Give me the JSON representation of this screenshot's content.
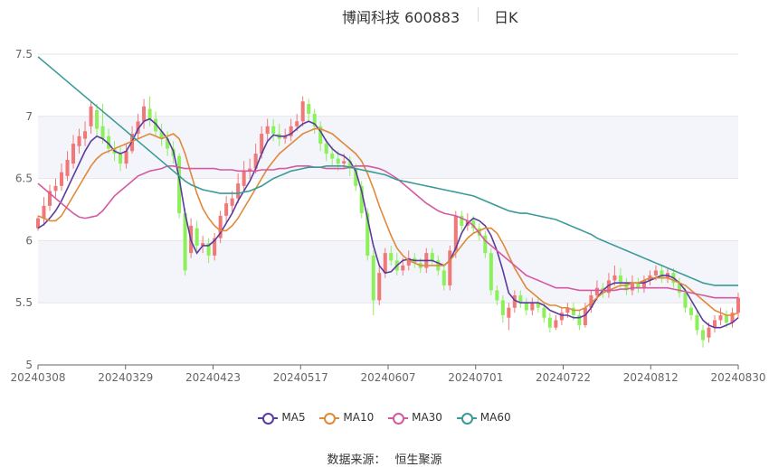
{
  "header": {
    "title": "博闻科技 600883",
    "period": "日K"
  },
  "source": {
    "label": "数据来源：",
    "name": "恒生聚源"
  },
  "colors": {
    "up": "#f07878",
    "down": "#8cf05a",
    "MA5": "#5b3b9e",
    "MA10": "#e0893a",
    "MA30": "#d45aa0",
    "MA60": "#3a9a98"
  },
  "chart_data": {
    "type": "candlestick",
    "title": "博闻科技 600883 日K",
    "ylim": [
      5,
      7.5
    ],
    "y_ticks": [
      "5",
      "5.5",
      "6",
      "6.5",
      "7",
      "7.5"
    ],
    "x_ticks": [
      "20240308",
      "20240329",
      "20240423",
      "20240517",
      "20240607",
      "20240701",
      "20240722",
      "20240812",
      "20240830"
    ],
    "legend": [
      "MA5",
      "MA10",
      "MA30",
      "MA60"
    ],
    "legend_position": "bottom",
    "candles": [
      {
        "o": 6.1,
        "c": 6.18,
        "h": 6.2,
        "l": 6.08
      },
      {
        "o": 6.18,
        "c": 6.28,
        "h": 6.35,
        "l": 6.12
      },
      {
        "o": 6.28,
        "c": 6.4,
        "h": 6.45,
        "l": 6.24
      },
      {
        "o": 6.4,
        "c": 6.44,
        "h": 6.5,
        "l": 6.35
      },
      {
        "o": 6.44,
        "c": 6.55,
        "h": 6.62,
        "l": 6.4
      },
      {
        "o": 6.52,
        "c": 6.65,
        "h": 6.72,
        "l": 6.48
      },
      {
        "o": 6.62,
        "c": 6.78,
        "h": 6.85,
        "l": 6.58
      },
      {
        "o": 6.76,
        "c": 6.84,
        "h": 6.9,
        "l": 6.7
      },
      {
        "o": 6.82,
        "c": 6.88,
        "h": 6.96,
        "l": 6.76
      },
      {
        "o": 6.92,
        "c": 7.08,
        "h": 7.12,
        "l": 6.86
      },
      {
        "o": 7.05,
        "c": 6.9,
        "h": 7.1,
        "l": 6.84
      },
      {
        "o": 6.92,
        "c": 6.82,
        "h": 7.1,
        "l": 6.78
      },
      {
        "o": 6.84,
        "c": 6.74,
        "h": 6.9,
        "l": 6.7
      },
      {
        "o": 6.74,
        "c": 6.7,
        "h": 6.8,
        "l": 6.64
      },
      {
        "o": 6.7,
        "c": 6.62,
        "h": 6.76,
        "l": 6.56
      },
      {
        "o": 6.62,
        "c": 6.72,
        "h": 6.78,
        "l": 6.58
      },
      {
        "o": 6.72,
        "c": 6.86,
        "h": 6.92,
        "l": 6.7
      },
      {
        "o": 6.86,
        "c": 6.96,
        "h": 7.02,
        "l": 6.82
      },
      {
        "o": 6.96,
        "c": 7.08,
        "h": 7.14,
        "l": 6.9
      },
      {
        "o": 7.06,
        "c": 6.98,
        "h": 7.16,
        "l": 6.92
      },
      {
        "o": 6.98,
        "c": 6.88,
        "h": 7.04,
        "l": 6.84
      },
      {
        "o": 6.88,
        "c": 6.82,
        "h": 6.94,
        "l": 6.76
      },
      {
        "o": 6.82,
        "c": 6.74,
        "h": 6.88,
        "l": 6.68
      },
      {
        "o": 6.74,
        "c": 6.68,
        "h": 6.8,
        "l": 6.62
      },
      {
        "o": 6.68,
        "c": 6.22,
        "h": 6.7,
        "l": 6.18
      },
      {
        "o": 6.22,
        "c": 5.76,
        "h": 6.26,
        "l": 5.72
      },
      {
        "o": 5.9,
        "c": 6.12,
        "h": 6.18,
        "l": 5.86
      },
      {
        "o": 6.1,
        "c": 5.96,
        "h": 6.16,
        "l": 5.92
      },
      {
        "o": 5.96,
        "c": 5.98,
        "h": 6.04,
        "l": 5.9
      },
      {
        "o": 5.98,
        "c": 5.88,
        "h": 6.02,
        "l": 5.82
      },
      {
        "o": 5.88,
        "c": 6.02,
        "h": 6.06,
        "l": 5.84
      },
      {
        "o": 6.02,
        "c": 6.2,
        "h": 6.24,
        "l": 5.98
      },
      {
        "o": 6.2,
        "c": 6.3,
        "h": 6.36,
        "l": 6.14
      },
      {
        "o": 6.28,
        "c": 6.34,
        "h": 6.4,
        "l": 6.22
      },
      {
        "o": 6.34,
        "c": 6.46,
        "h": 6.54,
        "l": 6.3
      },
      {
        "o": 6.44,
        "c": 6.56,
        "h": 6.64,
        "l": 6.4
      },
      {
        "o": 6.56,
        "c": 6.58,
        "h": 6.66,
        "l": 6.5
      },
      {
        "o": 6.58,
        "c": 6.7,
        "h": 6.78,
        "l": 6.54
      },
      {
        "o": 6.7,
        "c": 6.86,
        "h": 6.92,
        "l": 6.66
      },
      {
        "o": 6.86,
        "c": 6.92,
        "h": 6.98,
        "l": 6.8
      },
      {
        "o": 6.92,
        "c": 6.86,
        "h": 6.98,
        "l": 6.8
      },
      {
        "o": 6.86,
        "c": 6.82,
        "h": 6.94,
        "l": 6.76
      },
      {
        "o": 6.82,
        "c": 6.84,
        "h": 6.9,
        "l": 6.78
      },
      {
        "o": 6.84,
        "c": 6.92,
        "h": 6.98,
        "l": 6.8
      },
      {
        "o": 6.92,
        "c": 6.96,
        "h": 7.02,
        "l": 6.88
      },
      {
        "o": 6.96,
        "c": 7.12,
        "h": 7.16,
        "l": 6.92
      },
      {
        "o": 7.1,
        "c": 7.02,
        "h": 7.14,
        "l": 6.96
      },
      {
        "o": 7.02,
        "c": 6.92,
        "h": 7.06,
        "l": 6.86
      },
      {
        "o": 6.92,
        "c": 6.78,
        "h": 6.96,
        "l": 6.72
      },
      {
        "o": 6.78,
        "c": 6.7,
        "h": 6.82,
        "l": 6.64
      },
      {
        "o": 6.7,
        "c": 6.66,
        "h": 6.76,
        "l": 6.6
      },
      {
        "o": 6.66,
        "c": 6.62,
        "h": 6.72,
        "l": 6.56
      },
      {
        "o": 6.62,
        "c": 6.64,
        "h": 6.7,
        "l": 6.58
      },
      {
        "o": 6.64,
        "c": 6.58,
        "h": 6.68,
        "l": 6.52
      },
      {
        "o": 6.58,
        "c": 6.44,
        "h": 6.62,
        "l": 6.4
      },
      {
        "o": 6.44,
        "c": 6.22,
        "h": 6.48,
        "l": 6.18
      },
      {
        "o": 6.22,
        "c": 5.88,
        "h": 6.26,
        "l": 5.84
      },
      {
        "o": 5.88,
        "c": 5.52,
        "h": 5.92,
        "l": 5.4
      },
      {
        "o": 5.52,
        "c": 5.74,
        "h": 5.8,
        "l": 5.48
      },
      {
        "o": 5.74,
        "c": 5.9,
        "h": 5.94,
        "l": 5.7
      },
      {
        "o": 5.9,
        "c": 5.84,
        "h": 5.96,
        "l": 5.8
      },
      {
        "o": 5.84,
        "c": 5.76,
        "h": 5.9,
        "l": 5.72
      },
      {
        "o": 5.76,
        "c": 5.8,
        "h": 5.86,
        "l": 5.72
      },
      {
        "o": 5.8,
        "c": 5.86,
        "h": 5.92,
        "l": 5.76
      },
      {
        "o": 5.86,
        "c": 5.82,
        "h": 5.9,
        "l": 5.78
      },
      {
        "o": 5.82,
        "c": 5.78,
        "h": 5.86,
        "l": 5.74
      },
      {
        "o": 5.78,
        "c": 5.9,
        "h": 5.94,
        "l": 5.74
      },
      {
        "o": 5.9,
        "c": 5.84,
        "h": 5.94,
        "l": 5.8
      },
      {
        "o": 5.84,
        "c": 5.76,
        "h": 5.88,
        "l": 5.72
      },
      {
        "o": 5.76,
        "c": 5.64,
        "h": 5.8,
        "l": 5.6
      },
      {
        "o": 5.64,
        "c": 5.92,
        "h": 5.96,
        "l": 5.6
      },
      {
        "o": 5.92,
        "c": 6.2,
        "h": 6.24,
        "l": 5.86
      },
      {
        "o": 6.2,
        "c": 6.12,
        "h": 6.24,
        "l": 6.08
      },
      {
        "o": 6.12,
        "c": 6.16,
        "h": 6.22,
        "l": 6.08
      },
      {
        "o": 6.16,
        "c": 6.1,
        "h": 6.2,
        "l": 6.06
      },
      {
        "o": 6.1,
        "c": 6.04,
        "h": 6.14,
        "l": 6.0
      },
      {
        "o": 6.04,
        "c": 5.9,
        "h": 6.08,
        "l": 5.86
      },
      {
        "o": 5.9,
        "c": 5.6,
        "h": 5.94,
        "l": 5.56
      },
      {
        "o": 5.6,
        "c": 5.52,
        "h": 5.64,
        "l": 5.48
      },
      {
        "o": 5.52,
        "c": 5.4,
        "h": 5.56,
        "l": 5.34
      },
      {
        "o": 5.38,
        "c": 5.46,
        "h": 5.5,
        "l": 5.28
      },
      {
        "o": 5.46,
        "c": 5.56,
        "h": 5.6,
        "l": 5.42
      },
      {
        "o": 5.56,
        "c": 5.5,
        "h": 5.6,
        "l": 5.46
      },
      {
        "o": 5.5,
        "c": 5.44,
        "h": 5.54,
        "l": 5.4
      },
      {
        "o": 5.44,
        "c": 5.5,
        "h": 5.54,
        "l": 5.4
      },
      {
        "o": 5.5,
        "c": 5.46,
        "h": 5.54,
        "l": 5.42
      },
      {
        "o": 5.46,
        "c": 5.38,
        "h": 5.5,
        "l": 5.34
      },
      {
        "o": 5.38,
        "c": 5.3,
        "h": 5.42,
        "l": 5.26
      },
      {
        "o": 5.3,
        "c": 5.36,
        "h": 5.4,
        "l": 5.28
      },
      {
        "o": 5.36,
        "c": 5.42,
        "h": 5.46,
        "l": 5.32
      },
      {
        "o": 5.42,
        "c": 5.46,
        "h": 5.5,
        "l": 5.38
      },
      {
        "o": 5.46,
        "c": 5.4,
        "h": 5.5,
        "l": 5.36
      },
      {
        "o": 5.4,
        "c": 5.32,
        "h": 5.44,
        "l": 5.28
      },
      {
        "o": 5.32,
        "c": 5.46,
        "h": 5.5,
        "l": 5.3
      },
      {
        "o": 5.46,
        "c": 5.56,
        "h": 5.6,
        "l": 5.42
      },
      {
        "o": 5.56,
        "c": 5.62,
        "h": 5.68,
        "l": 5.52
      },
      {
        "o": 5.62,
        "c": 5.58,
        "h": 5.66,
        "l": 5.54
      },
      {
        "o": 5.58,
        "c": 5.68,
        "h": 5.74,
        "l": 5.54
      },
      {
        "o": 5.68,
        "c": 5.72,
        "h": 5.8,
        "l": 5.64
      },
      {
        "o": 5.72,
        "c": 5.66,
        "h": 5.78,
        "l": 5.62
      },
      {
        "o": 5.66,
        "c": 5.6,
        "h": 5.7,
        "l": 5.56
      },
      {
        "o": 5.6,
        "c": 5.66,
        "h": 5.72,
        "l": 5.56
      },
      {
        "o": 5.66,
        "c": 5.62,
        "h": 5.7,
        "l": 5.58
      },
      {
        "o": 5.62,
        "c": 5.68,
        "h": 5.72,
        "l": 5.58
      },
      {
        "o": 5.68,
        "c": 5.72,
        "h": 5.76,
        "l": 5.64
      },
      {
        "o": 5.72,
        "c": 5.76,
        "h": 5.8,
        "l": 5.68
      },
      {
        "o": 5.76,
        "c": 5.7,
        "h": 5.8,
        "l": 5.66
      },
      {
        "o": 5.7,
        "c": 5.74,
        "h": 5.78,
        "l": 5.66
      },
      {
        "o": 5.74,
        "c": 5.66,
        "h": 5.78,
        "l": 5.62
      },
      {
        "o": 5.66,
        "c": 5.58,
        "h": 5.7,
        "l": 5.54
      },
      {
        "o": 5.58,
        "c": 5.46,
        "h": 5.62,
        "l": 5.42
      },
      {
        "o": 5.46,
        "c": 5.4,
        "h": 5.5,
        "l": 5.36
      },
      {
        "o": 5.4,
        "c": 5.28,
        "h": 5.44,
        "l": 5.24
      },
      {
        "o": 5.28,
        "c": 5.2,
        "h": 5.32,
        "l": 5.14
      },
      {
        "o": 5.22,
        "c": 5.3,
        "h": 5.34,
        "l": 5.18
      },
      {
        "o": 5.3,
        "c": 5.36,
        "h": 5.4,
        "l": 5.26
      },
      {
        "o": 5.36,
        "c": 5.4,
        "h": 5.46,
        "l": 5.32
      },
      {
        "o": 5.4,
        "c": 5.34,
        "h": 5.44,
        "l": 5.3
      },
      {
        "o": 5.34,
        "c": 5.42,
        "h": 5.46,
        "l": 5.3
      },
      {
        "o": 5.42,
        "c": 5.54,
        "h": 5.58,
        "l": 5.38
      }
    ],
    "series": [
      {
        "name": "MA5",
        "values": [
          6.1,
          6.13,
          6.18,
          6.24,
          6.32,
          6.42,
          6.52,
          6.62,
          6.72,
          6.8,
          6.84,
          6.82,
          6.78,
          6.72,
          6.7,
          6.72,
          6.8,
          6.9,
          6.96,
          6.98,
          6.94,
          6.88,
          6.82,
          6.72,
          6.5,
          6.22,
          6.0,
          5.9,
          5.96,
          5.96,
          6.0,
          6.06,
          6.14,
          6.22,
          6.32,
          6.4,
          6.48,
          6.58,
          6.7,
          6.8,
          6.85,
          6.84,
          6.84,
          6.86,
          6.9,
          6.94,
          6.96,
          6.94,
          6.88,
          6.8,
          6.74,
          6.7,
          6.68,
          6.64,
          6.56,
          6.4,
          6.18,
          5.96,
          5.8,
          5.74,
          5.75,
          5.8,
          5.84,
          5.85,
          5.84,
          5.84,
          5.84,
          5.84,
          5.82,
          5.8,
          5.84,
          5.94,
          6.06,
          6.14,
          6.18,
          6.16,
          6.12,
          6.04,
          5.92,
          5.76,
          5.58,
          5.52,
          5.5,
          5.5,
          5.5,
          5.5,
          5.48,
          5.44,
          5.42,
          5.4,
          5.4,
          5.38,
          5.38,
          5.4,
          5.46,
          5.54,
          5.6,
          5.64,
          5.66,
          5.66,
          5.66,
          5.66,
          5.66,
          5.66,
          5.68,
          5.7,
          5.72,
          5.72,
          5.7,
          5.66,
          5.6,
          5.52,
          5.44,
          5.36,
          5.32,
          5.3,
          5.3,
          5.32,
          5.34,
          5.38
        ]
      },
      {
        "name": "MA10",
        "values": [
          6.2,
          6.18,
          6.16,
          6.16,
          6.2,
          6.28,
          6.36,
          6.44,
          6.52,
          6.6,
          6.66,
          6.7,
          6.72,
          6.74,
          6.76,
          6.78,
          6.8,
          6.82,
          6.84,
          6.86,
          6.84,
          6.82,
          6.84,
          6.86,
          6.82,
          6.7,
          6.54,
          6.38,
          6.26,
          6.18,
          6.12,
          6.08,
          6.08,
          6.12,
          6.18,
          6.26,
          6.34,
          6.42,
          6.5,
          6.58,
          6.64,
          6.7,
          6.74,
          6.78,
          6.82,
          6.86,
          6.88,
          6.9,
          6.9,
          6.88,
          6.86,
          6.82,
          6.78,
          6.74,
          6.7,
          6.64,
          6.54,
          6.42,
          6.28,
          6.16,
          6.04,
          5.94,
          5.88,
          5.84,
          5.82,
          5.8,
          5.8,
          5.8,
          5.8,
          5.8,
          5.84,
          5.9,
          5.96,
          6.02,
          6.06,
          6.08,
          6.1,
          6.1,
          6.06,
          5.98,
          5.88,
          5.78,
          5.7,
          5.62,
          5.58,
          5.54,
          5.5,
          5.48,
          5.48,
          5.46,
          5.46,
          5.44,
          5.44,
          5.46,
          5.5,
          5.54,
          5.58,
          5.6,
          5.62,
          5.64,
          5.64,
          5.66,
          5.66,
          5.68,
          5.7,
          5.7,
          5.7,
          5.7,
          5.68,
          5.66,
          5.64,
          5.6,
          5.56,
          5.52,
          5.48,
          5.44,
          5.42,
          5.4,
          5.4,
          5.42
        ]
      },
      {
        "name": "MA30",
        "values": [
          6.46,
          6.42,
          6.38,
          6.34,
          6.3,
          6.26,
          6.22,
          6.19,
          6.18,
          6.19,
          6.2,
          6.24,
          6.3,
          6.36,
          6.4,
          6.44,
          6.48,
          6.52,
          6.54,
          6.56,
          6.57,
          6.58,
          6.6,
          6.6,
          6.59,
          6.58,
          6.58,
          6.58,
          6.58,
          6.58,
          6.58,
          6.57,
          6.57,
          6.57,
          6.56,
          6.56,
          6.56,
          6.56,
          6.57,
          6.57,
          6.57,
          6.58,
          6.58,
          6.59,
          6.6,
          6.6,
          6.6,
          6.59,
          6.59,
          6.58,
          6.58,
          6.58,
          6.58,
          6.59,
          6.6,
          6.6,
          6.6,
          6.59,
          6.58,
          6.56,
          6.53,
          6.5,
          6.46,
          6.42,
          6.38,
          6.34,
          6.3,
          6.27,
          6.24,
          6.22,
          6.21,
          6.2,
          6.18,
          6.16,
          6.12,
          6.06,
          6.0,
          5.96,
          5.92,
          5.88,
          5.84,
          5.8,
          5.76,
          5.72,
          5.7,
          5.68,
          5.66,
          5.64,
          5.62,
          5.62,
          5.62,
          5.61,
          5.6,
          5.6,
          5.6,
          5.6,
          5.6,
          5.6,
          5.6,
          5.61,
          5.61,
          5.62,
          5.62,
          5.62,
          5.62,
          5.62,
          5.62,
          5.62,
          5.61,
          5.6,
          5.59,
          5.58,
          5.57,
          5.56,
          5.55,
          5.54,
          5.54,
          5.54,
          5.54,
          5.54
        ]
      },
      {
        "name": "MA60",
        "values": [
          7.48,
          7.44,
          7.4,
          7.36,
          7.32,
          7.28,
          7.24,
          7.2,
          7.16,
          7.12,
          7.08,
          7.04,
          7.0,
          6.96,
          6.92,
          6.88,
          6.84,
          6.8,
          6.76,
          6.72,
          6.68,
          6.64,
          6.6,
          6.56,
          6.52,
          6.48,
          6.45,
          6.43,
          6.41,
          6.4,
          6.39,
          6.38,
          6.38,
          6.38,
          6.38,
          6.39,
          6.4,
          6.42,
          6.44,
          6.47,
          6.5,
          6.52,
          6.54,
          6.56,
          6.57,
          6.58,
          6.59,
          6.59,
          6.59,
          6.6,
          6.6,
          6.6,
          6.6,
          6.59,
          6.58,
          6.57,
          6.56,
          6.55,
          6.54,
          6.53,
          6.51,
          6.49,
          6.48,
          6.47,
          6.46,
          6.45,
          6.44,
          6.43,
          6.42,
          6.41,
          6.4,
          6.39,
          6.38,
          6.37,
          6.36,
          6.34,
          6.32,
          6.3,
          6.28,
          6.26,
          6.24,
          6.23,
          6.22,
          6.22,
          6.21,
          6.2,
          6.19,
          6.18,
          6.17,
          6.15,
          6.13,
          6.11,
          6.09,
          6.07,
          6.05,
          6.02,
          6.0,
          5.98,
          5.96,
          5.94,
          5.92,
          5.9,
          5.88,
          5.86,
          5.84,
          5.82,
          5.8,
          5.78,
          5.76,
          5.74,
          5.72,
          5.7,
          5.68,
          5.66,
          5.65,
          5.64,
          5.64,
          5.64,
          5.64,
          5.64
        ]
      }
    ]
  }
}
